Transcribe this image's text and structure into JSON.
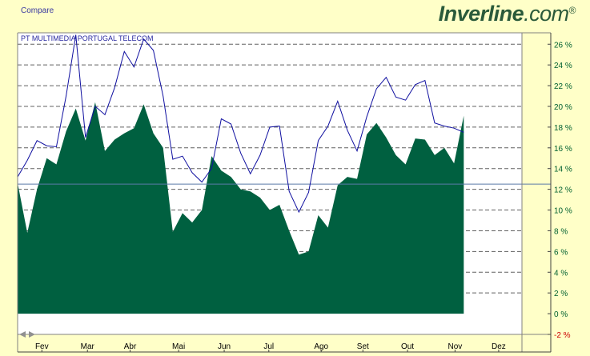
{
  "header": {
    "compare_link": "Compare",
    "logo_bold": "Inverline",
    "logo_light": ".com",
    "logo_reg": "®"
  },
  "chart_data": {
    "type": "area",
    "title": "",
    "xlabel": "",
    "ylabel": "",
    "ylim": [
      -2,
      27
    ],
    "y_ticks": [
      -2,
      0,
      2,
      4,
      6,
      8,
      10,
      12,
      14,
      16,
      18,
      20,
      22,
      24,
      26
    ],
    "y_tick_suffix": " %",
    "x_range": [
      0,
      52
    ],
    "months": [
      {
        "label": "Fev",
        "x": 2.5
      },
      {
        "label": "Mar",
        "x": 7.2
      },
      {
        "label": "Abr",
        "x": 11.6
      },
      {
        "label": "Mai",
        "x": 16.6
      },
      {
        "label": "Jun",
        "x": 21.3
      },
      {
        "label": "Jul",
        "x": 25.9
      },
      {
        "label": "Ago",
        "x": 31.3
      },
      {
        "label": "Set",
        "x": 35.6
      },
      {
        "label": "Out",
        "x": 40.2
      },
      {
        "label": "Nov",
        "x": 45.1
      },
      {
        "label": "Dez",
        "x": 49.6
      }
    ],
    "reference_line": 12.5,
    "series": [
      {
        "name": "PT MULTIMEDIA",
        "kind": "area",
        "color": "#006040",
        "x": [
          0,
          1,
          2,
          3,
          4,
          5,
          6,
          7,
          8,
          9,
          10,
          11,
          12,
          13,
          14,
          15,
          16,
          17,
          18,
          19,
          20,
          21,
          22,
          23,
          24,
          25,
          26,
          27,
          28,
          29,
          30,
          31,
          32,
          33,
          34,
          35,
          36,
          37,
          38,
          39,
          40,
          41,
          42,
          43,
          44,
          45,
          46,
          47,
          48,
          49,
          50,
          51
        ],
        "values": [
          12.6,
          7.8,
          12.0,
          15.0,
          14.4,
          17.6,
          19.8,
          16.7,
          20.4,
          15.7,
          16.8,
          17.4,
          17.9,
          20.2,
          17.4,
          16.0,
          7.9,
          9.7,
          8.8,
          10.0,
          15.2,
          13.8,
          13.2,
          12.0,
          11.8,
          11.2,
          10.0,
          10.5,
          8.0,
          5.7,
          6.0,
          9.5,
          8.3,
          12.4,
          13.2,
          13.0,
          17.3,
          18.4,
          17.0,
          15.3,
          14.4,
          16.9,
          16.8,
          15.3,
          16.0,
          14.5,
          19.1,
          null,
          null,
          null,
          null,
          null
        ]
      },
      {
        "name": "PORTUGAL TELECOM",
        "kind": "line",
        "color": "#1010a0",
        "x": [
          0,
          1,
          2,
          3,
          4,
          5,
          6,
          7,
          8,
          9,
          10,
          11,
          12,
          13,
          14,
          15,
          16,
          17,
          18,
          19,
          20,
          21,
          22,
          23,
          24,
          25,
          26,
          27,
          28,
          29,
          30,
          31,
          32,
          33,
          34,
          35,
          36,
          37,
          38,
          39,
          40,
          41,
          42,
          43,
          44,
          45,
          46,
          47,
          48,
          49,
          50,
          51
        ],
        "values": [
          13.2,
          14.8,
          16.7,
          16.2,
          16.1,
          21.0,
          26.9,
          17.0,
          20.0,
          19.2,
          21.8,
          25.3,
          23.8,
          26.5,
          25.4,
          21.0,
          14.9,
          15.2,
          13.6,
          12.7,
          14.0,
          18.8,
          18.3,
          15.5,
          13.5,
          15.3,
          18.0,
          18.1,
          11.8,
          9.8,
          11.7,
          16.7,
          18.1,
          20.5,
          17.7,
          15.7,
          19.0,
          21.7,
          22.8,
          20.9,
          20.6,
          22.1,
          22.5,
          18.4,
          18.1,
          17.9,
          17.5,
          null,
          null,
          null,
          null,
          null
        ]
      }
    ]
  },
  "colors": {
    "background": "#ffffc8",
    "plot_area": "#ffffff",
    "area_fill": "#006040",
    "line": "#1010a0",
    "grid": "#606060",
    "reference_line": "#5a7aa8",
    "tick_text_positive": "#006030",
    "tick_text_negative": "#cc0000"
  }
}
